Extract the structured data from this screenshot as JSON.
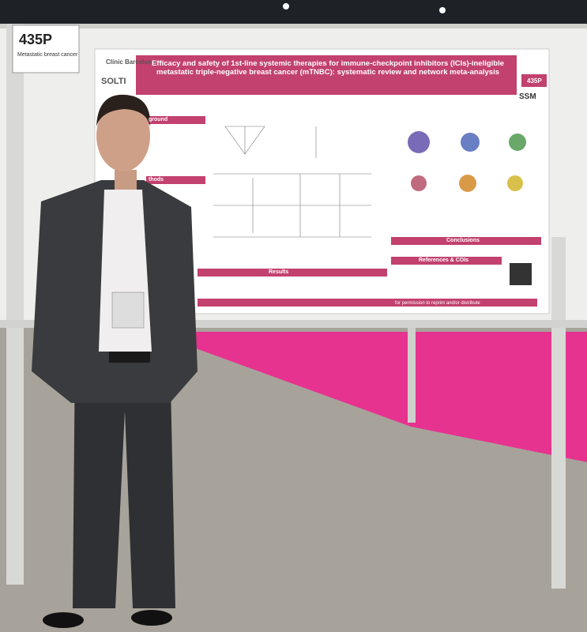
{
  "sign": {
    "code": "435P",
    "topic": "Metastatic breast cancer"
  },
  "poster": {
    "logos": [
      "Clínic Barcelona",
      "SOLTI",
      "SSM"
    ],
    "title": "Efficacy and safety of 1st-line systemic therapies for immune-checkpoint inhibitors (ICIs)-ineligible metastatic triple-negative breast cancer (mTNBC): systematic review and network meta-analysis",
    "badge": "435P",
    "sections": [
      "ground",
      "thods",
      "Results",
      "Conclusions",
      "References & COIs"
    ],
    "footer": "for permission to reprint and/or distribute"
  }
}
